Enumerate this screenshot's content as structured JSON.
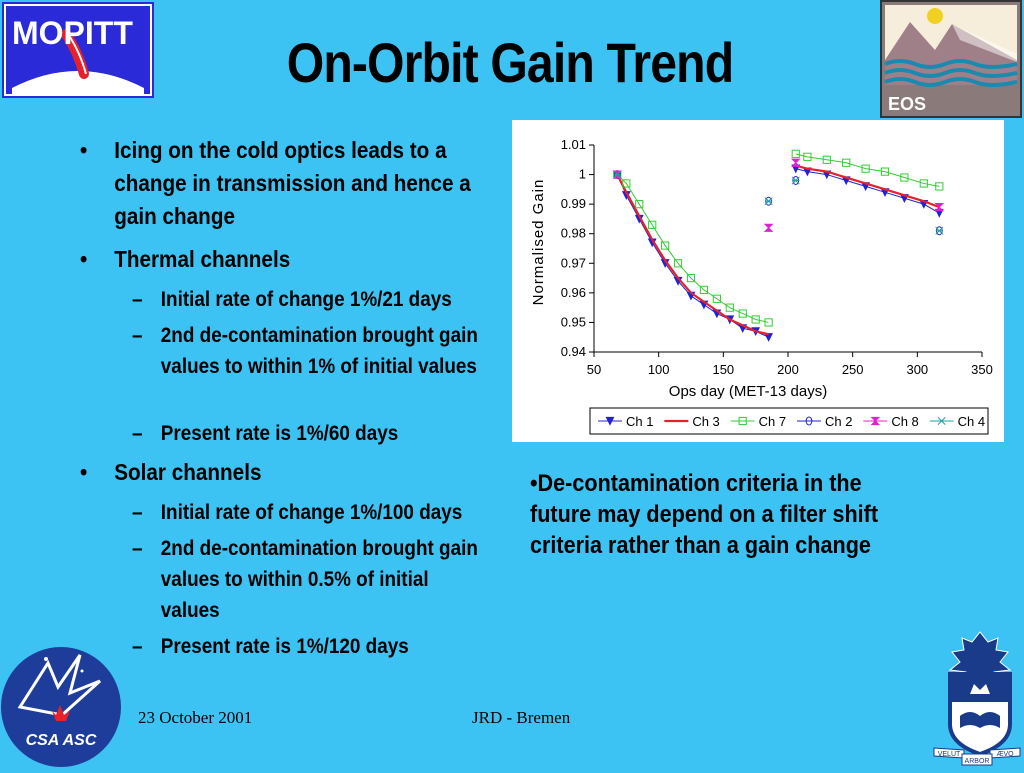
{
  "slide": {
    "title": "On-Orbit Gain Trend",
    "bullets": [
      {
        "text": "Icing on the cold optics leads to a change in transmission and hence a gain change"
      },
      {
        "text": "Thermal channels"
      },
      {
        "text": "Solar channels"
      }
    ],
    "thermal_sub": [
      "Initial rate of change 1%/21 days",
      "2nd de-contamination brought gain values to within 1% of initial values",
      "Present rate is 1%/60 days"
    ],
    "solar_sub": [
      "Initial rate of change 1%/100 days",
      "2nd de-contamination brought gain values to within 0.5% of initial values",
      "Present rate is 1%/120 days"
    ],
    "bullet_glyph": "•",
    "sub_glyph": "–",
    "note": "•De-contamination criteria in the future may depend on a filter shift criteria rather than a gain change",
    "footer_date": "23 October 2001",
    "footer_center": "JRD - Bremen",
    "logos": {
      "mopitt": "MOPITT",
      "eos": "EOS",
      "csa": "CSA ASC",
      "uoft_left": "VELUT",
      "uoft_right": "ÆVO",
      "uoft_bottom": "ARBOR"
    }
  },
  "chart_data": {
    "type": "scatter",
    "xlabel": "Ops day (MET-13 days)",
    "ylabel": "Normalised Gain",
    "xlim": [
      50,
      350
    ],
    "ylim": [
      0.94,
      1.01
    ],
    "xticks": [
      50,
      100,
      150,
      200,
      250,
      300,
      350
    ],
    "yticks": [
      0.94,
      0.95,
      0.96,
      0.97,
      0.98,
      0.99,
      1,
      1.01
    ],
    "grid": false,
    "legend": "bottom",
    "series": [
      {
        "name": "Ch 1",
        "color": "#2323d0",
        "marker": "triangle-down-filled",
        "x": [
          68,
          75,
          85,
          95,
          105,
          115,
          125,
          135,
          145,
          155,
          165,
          175,
          185,
          206,
          215,
          230,
          245,
          260,
          275,
          290,
          305,
          317
        ],
        "y": [
          1.0,
          0.993,
          0.985,
          0.977,
          0.97,
          0.964,
          0.959,
          0.956,
          0.953,
          0.951,
          0.948,
          0.947,
          0.945,
          1.002,
          1.001,
          1.0,
          0.998,
          0.996,
          0.994,
          0.992,
          0.99,
          0.987
        ]
      },
      {
        "name": "Ch 3",
        "color": "#e8202a",
        "marker": "line",
        "x": [
          68,
          75,
          85,
          95,
          105,
          115,
          125,
          135,
          145,
          155,
          165,
          175,
          185,
          206,
          215,
          230,
          245,
          260,
          275,
          290,
          305,
          317
        ],
        "y": [
          1.0,
          0.994,
          0.986,
          0.978,
          0.971,
          0.965,
          0.96,
          0.957,
          0.954,
          0.951,
          0.949,
          0.947,
          0.946,
          1.003,
          1.002,
          1.001,
          0.999,
          0.997,
          0.995,
          0.993,
          0.991,
          0.989
        ]
      },
      {
        "name": "Ch 7",
        "color": "#33cc33",
        "marker": "square-open",
        "x": [
          68,
          75,
          85,
          95,
          105,
          115,
          125,
          135,
          145,
          155,
          165,
          175,
          185,
          206,
          215,
          230,
          245,
          260,
          275,
          290,
          305,
          317
        ],
        "y": [
          1.0,
          0.997,
          0.99,
          0.983,
          0.976,
          0.97,
          0.965,
          0.961,
          0.958,
          0.955,
          0.953,
          0.951,
          0.95,
          1.007,
          1.006,
          1.005,
          1.004,
          1.002,
          1.001,
          0.999,
          0.997,
          0.996
        ]
      },
      {
        "name": "Ch 2",
        "color": "#2323d0",
        "marker": "circle-open",
        "x": [
          68,
          185,
          206,
          317
        ],
        "y": [
          1.0,
          0.991,
          0.998,
          0.981
        ]
      },
      {
        "name": "Ch 8",
        "color": "#e020d0",
        "marker": "hourglass",
        "x": [
          68,
          185,
          206,
          317
        ],
        "y": [
          1.0,
          0.982,
          1.004,
          0.989
        ]
      },
      {
        "name": "Ch 4",
        "color": "#20a0a0",
        "marker": "x",
        "x": [
          68,
          185,
          206,
          317
        ],
        "y": [
          1.0,
          0.991,
          0.998,
          0.981
        ]
      }
    ]
  }
}
